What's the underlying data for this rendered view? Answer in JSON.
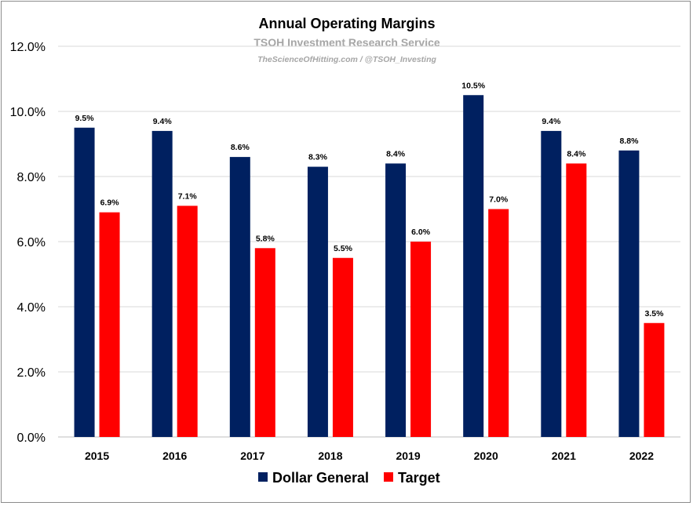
{
  "chart_data": {
    "type": "bar",
    "title": "Annual Operating Margins",
    "subtitle": "TSOH Investment Research Service",
    "source": "TheScienceOfHitting.com / @TSOH_Investing",
    "categories": [
      "2015",
      "2016",
      "2017",
      "2018",
      "2019",
      "2020",
      "2021",
      "2022"
    ],
    "series": [
      {
        "name": "Dollar General",
        "color": "#002060",
        "values": [
          9.5,
          9.4,
          8.6,
          8.3,
          8.4,
          10.5,
          9.4,
          8.8
        ],
        "labels": [
          "9.5%",
          "9.4%",
          "8.6%",
          "8.3%",
          "8.4%",
          "10.5%",
          "9.4%",
          "8.8%"
        ]
      },
      {
        "name": "Target",
        "color": "#ff0000",
        "values": [
          6.9,
          7.1,
          5.8,
          5.5,
          6.0,
          7.0,
          8.4,
          3.5
        ],
        "labels": [
          "6.9%",
          "7.1%",
          "5.8%",
          "5.5%",
          "6.0%",
          "7.0%",
          "8.4%",
          "3.5%"
        ]
      }
    ],
    "ylim": [
      0,
      12
    ],
    "yticks": [
      0,
      2,
      4,
      6,
      8,
      10,
      12
    ],
    "ytick_labels": [
      "0.0%",
      "2.0%",
      "4.0%",
      "6.0%",
      "8.0%",
      "10.0%",
      "12.0%"
    ],
    "xlabel": "",
    "ylabel": "",
    "grid": true,
    "gridline_color": "#d9d9d9",
    "legend_position": "bottom"
  }
}
